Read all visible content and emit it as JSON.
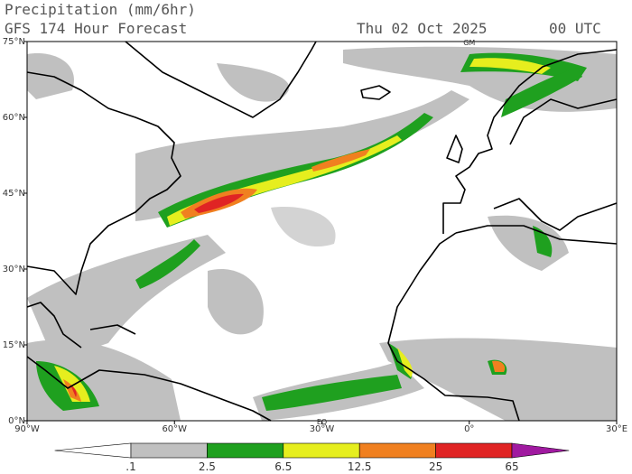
{
  "header": {
    "title": "Precipitation (mm/6hr)",
    "subtitle": "GFS 174 Hour Forecast",
    "date": "Thu 02 Oct 2025",
    "time": "00 UTC"
  },
  "map": {
    "lon_range": [
      -90,
      30
    ],
    "lat_range": [
      0,
      75
    ],
    "lon_ticks": [
      {
        "value": -90,
        "label": "90°W"
      },
      {
        "value": -60,
        "label": "60°W"
      },
      {
        "value": -30,
        "label": "30°W"
      },
      {
        "value": 0,
        "label": "0°"
      },
      {
        "value": 30,
        "label": "30°E"
      }
    ],
    "lat_ticks": [
      {
        "value": 0,
        "label": "0°N"
      },
      {
        "value": 15,
        "label": "15°N"
      },
      {
        "value": 30,
        "label": "30°N"
      },
      {
        "value": 45,
        "label": "45°N"
      },
      {
        "value": 60,
        "label": "60°N"
      },
      {
        "value": 75,
        "label": "75°N"
      }
    ],
    "markers": [
      {
        "label": "GM",
        "lon": 0,
        "lat": 75
      },
      {
        "label": "EQ",
        "lon": -30,
        "lat": 0
      }
    ]
  },
  "colorbar": {
    "levels": [
      {
        "value": 0.1,
        "label": ".1"
      },
      2.5,
      6.5,
      12.5,
      25,
      65
    ],
    "colors": [
      "#ffffff",
      "#c0c0c0",
      "#1fa01f",
      "#e6ee1e",
      "#f08020",
      "#e02424",
      "#a01aa0"
    ]
  }
}
